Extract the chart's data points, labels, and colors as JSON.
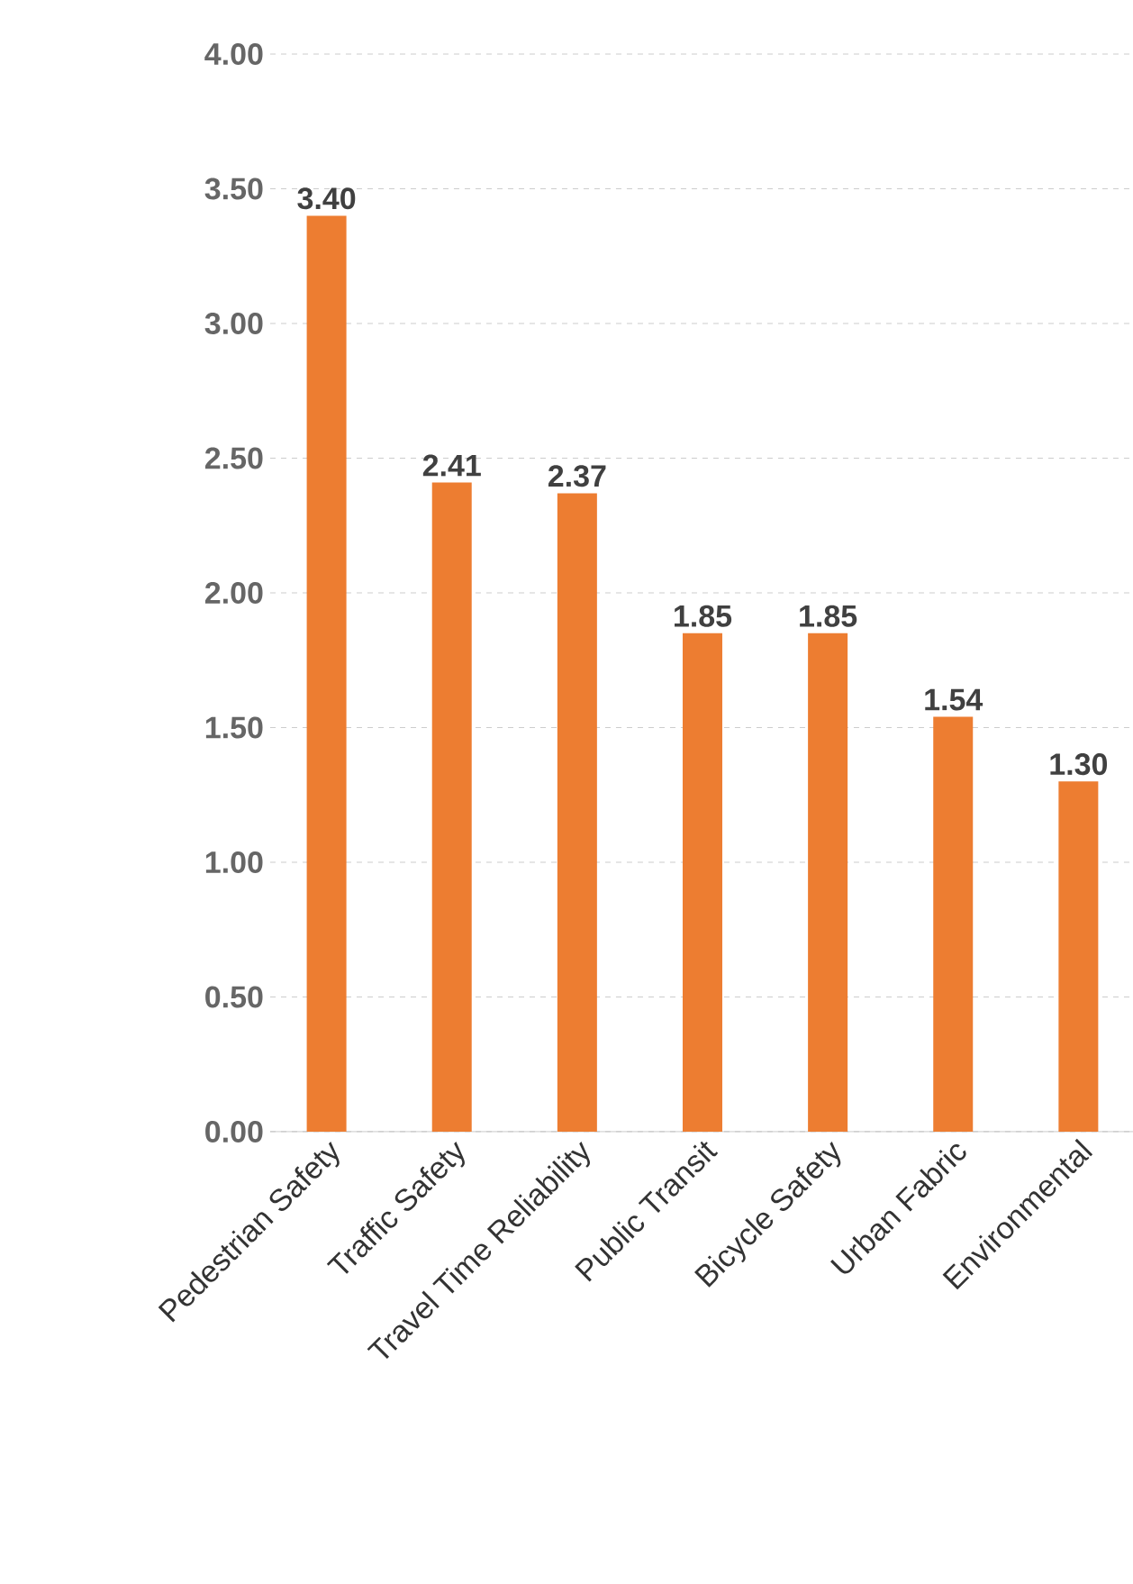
{
  "chart_data": {
    "type": "bar",
    "categories": [
      "Pedestrian Safety",
      "Traffic Safety",
      "Travel Time Reliability",
      "Public Transit",
      "Bicycle Safety",
      "Urban Fabric",
      "Environmental"
    ],
    "values": [
      3.4,
      2.41,
      2.37,
      1.85,
      1.85,
      1.54,
      1.3
    ],
    "color": "#ed7d31",
    "ylim": [
      0,
      4
    ],
    "yticks": [
      {
        "value": 0,
        "label": "0.00"
      },
      {
        "value": 0.5,
        "label": "0.50"
      },
      {
        "value": 1,
        "label": "1.00"
      },
      {
        "value": 1.5,
        "label": "1.50"
      },
      {
        "value": 2,
        "label": "2.00"
      },
      {
        "value": 2.5,
        "label": "2.50"
      },
      {
        "value": 3,
        "label": "3.00"
      },
      {
        "value": 3.5,
        "label": "3.50"
      },
      {
        "value": 4,
        "label": "4.00"
      }
    ],
    "value_labels": [
      "3.40",
      "2.41",
      "2.37",
      "1.85",
      "1.85",
      "1.54",
      "1.30"
    ],
    "grid": "y"
  }
}
